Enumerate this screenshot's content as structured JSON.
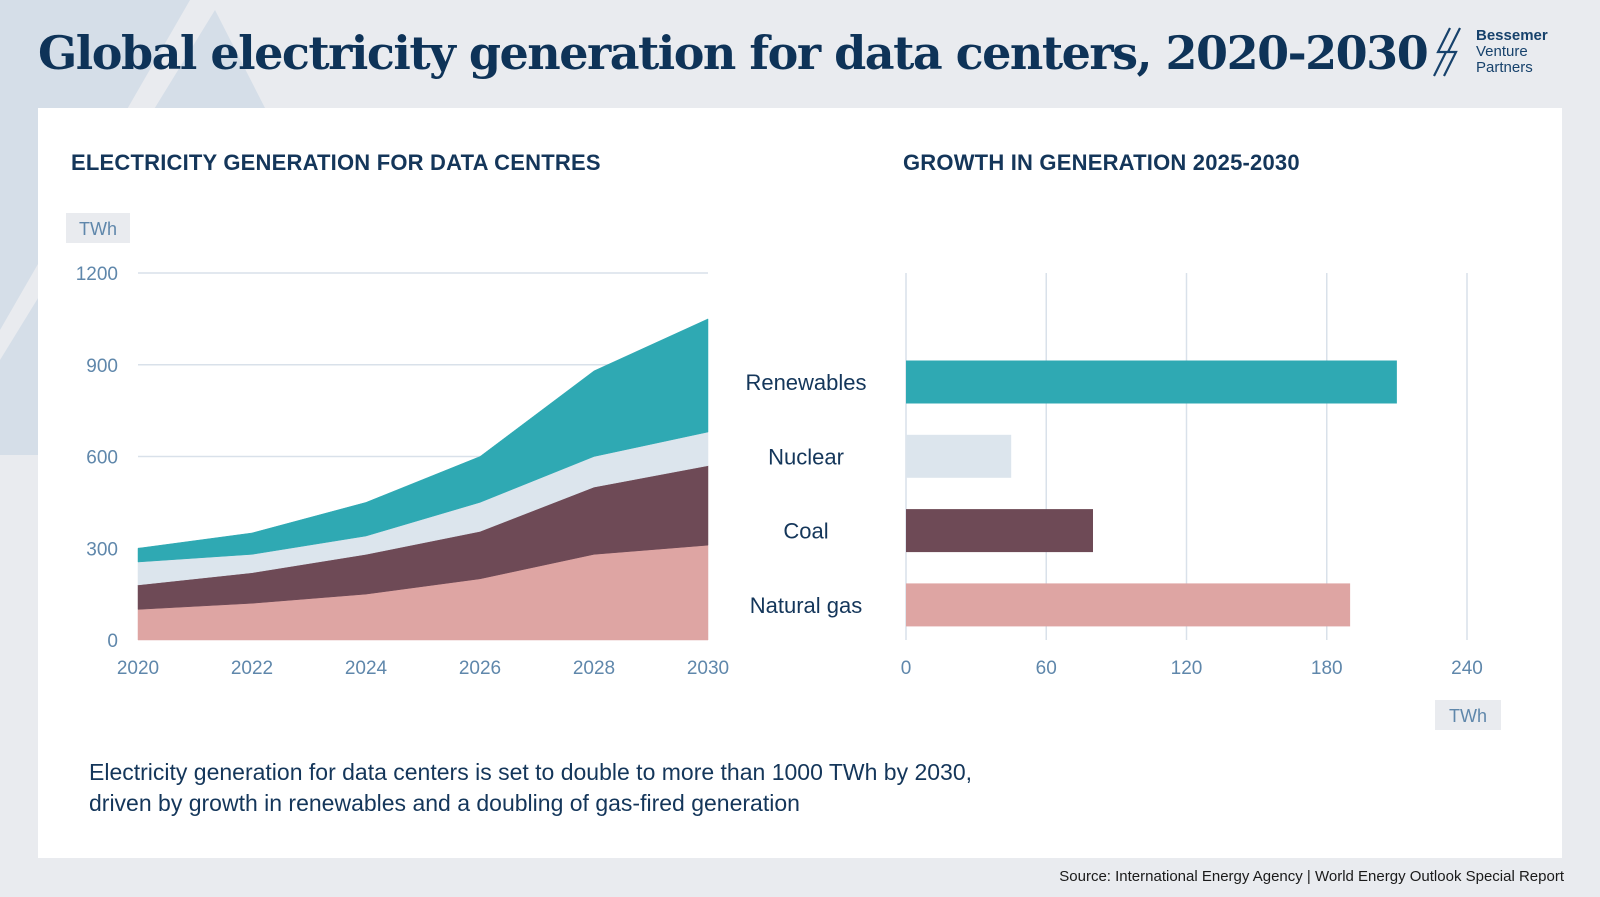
{
  "title": "Global electricity generation for data centers, 2020-2030",
  "logo": {
    "line1": "Bessemer",
    "line2": "Venture",
    "line3": "Partners"
  },
  "colors": {
    "natural_gas": "#dea5a3",
    "coal": "#6e4a56",
    "nuclear": "#dce5ed",
    "renewables": "#2fa9b3",
    "grid": "#d9e1ea",
    "text_dark": "#14365a",
    "tick_text": "#5f87ab",
    "background": "#e9ebef"
  },
  "chart_data": [
    {
      "type": "area",
      "title": "ELECTRICITY GENERATION FOR DATA CENTRES",
      "ylabel": "TWh",
      "xlabel": "",
      "x": [
        2020,
        2022,
        2024,
        2026,
        2028,
        2030
      ],
      "x_ticks": [
        "2020",
        "2022",
        "2024",
        "2026",
        "2028",
        "2030"
      ],
      "y_ticks": [
        "0",
        "300",
        "600",
        "900",
        "1200"
      ],
      "ylim": [
        0,
        1200
      ],
      "stacked": true,
      "grid": true,
      "series": [
        {
          "name": "Natural gas",
          "color": "#dea5a3",
          "values": [
            100,
            120,
            150,
            200,
            280,
            310
          ]
        },
        {
          "name": "Coal",
          "color": "#6e4a56",
          "values": [
            80,
            100,
            130,
            155,
            220,
            260
          ]
        },
        {
          "name": "Nuclear",
          "color": "#dce5ed",
          "values": [
            75,
            60,
            60,
            95,
            100,
            110
          ]
        },
        {
          "name": "Renewables",
          "color": "#2fa9b3",
          "values": [
            45,
            70,
            110,
            150,
            280,
            370
          ]
        }
      ]
    },
    {
      "type": "bar",
      "orientation": "horizontal",
      "title": "GROWTH IN GENERATION 2025-2030",
      "xlabel": "TWh",
      "categories": [
        "Renewables",
        "Nuclear",
        "Coal",
        "Natural gas"
      ],
      "values": [
        210,
        45,
        80,
        190
      ],
      "colors": [
        "#2fa9b3",
        "#dce5ed",
        "#6e4a56",
        "#dea5a3"
      ],
      "x_ticks": [
        "0",
        "60",
        "120",
        "180",
        "240"
      ],
      "xlim": [
        0,
        240
      ],
      "grid": true
    }
  ],
  "caption": {
    "line1": "Electricity generation for data centers is set to double to more than 1000 TWh by 2030,",
    "line2": "driven by growth in renewables and a doubling of gas-fired generation"
  },
  "source": "Source: International Energy Agency | World Energy Outlook Special Report"
}
